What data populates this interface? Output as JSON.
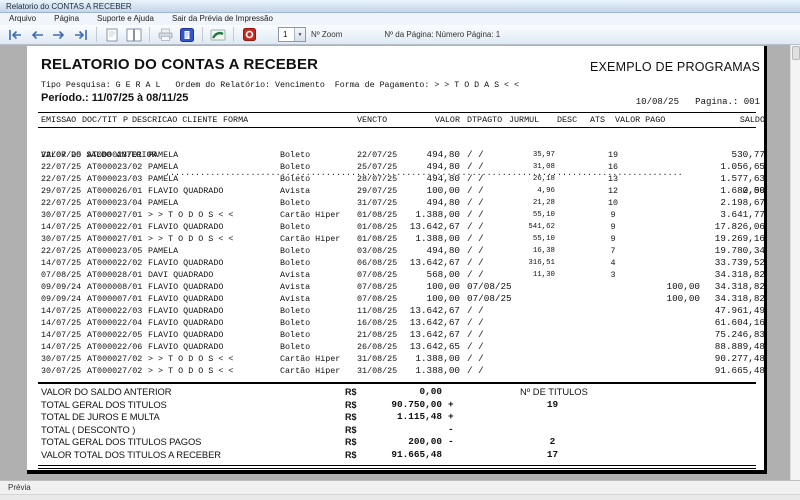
{
  "colors": {
    "titlebar_blue": "#c3d6ea",
    "nav_arrow_blue": "#3f6cb0",
    "dialog_icon_blue": "#3355cc",
    "export_icon_green": "#1f7a46",
    "exit_icon_red": "#c8281e",
    "workspace_gray": "#b0b0b0",
    "page_white": "#ffffff"
  },
  "window": {
    "title": "Relatorio do CONTAS A RECEBER"
  },
  "menu": {
    "items": [
      "Arquivo",
      "Página",
      "Suporte e Ajuda",
      "Sair da Prévia de Impressão"
    ]
  },
  "toolbar": {
    "icons": [
      "first-page",
      "prev-page",
      "next-page",
      "last-page",
      "single-page",
      "two-pages",
      "print",
      "print-dialog",
      "export",
      "exit"
    ],
    "zoom_value": "1",
    "zoom_label": "Nº Zoom",
    "page_info": "Nº da Página: Número Página: 1"
  },
  "report": {
    "title": "RELATORIO DO CONTAS A RECEBER",
    "company": "EXEMPLO DE PROGRAMAS",
    "meta": "Tipo Pesquisa: G E R A L   Ordem do Relatório: Vencimento  Forma de Pagamento: > > T O D A S < <",
    "period": "Período.: 11/07/25 à 08/11/25",
    "date_page": "10/08/25   Pagina.: 001",
    "columns": [
      "EMISSAO",
      "DOC/TIT",
      "P",
      "DESCRICAO CLIENTE",
      "FORMA",
      "VENCTO",
      "VALOR",
      "DTPAGTO",
      "JURMUL",
      "DESC",
      "ATS",
      "VALOR PAGO",
      "SALDO"
    ],
    "saldo_anterior": {
      "label": "VALOR DO SALDO ANTERIOR",
      "dots": "..............................................................................................................",
      "value": "0,00"
    },
    "rows": [
      {
        "emissao": "22/07/25",
        "doc": "AT000023/01",
        "name": "PAMELA",
        "forma": "Boleto",
        "vencto": "22/07/25",
        "valor": "494,80",
        "dtpagto": "/ /",
        "jurmul": "35,97",
        "ats": "19",
        "pago": "",
        "saldo": "530,77"
      },
      {
        "emissao": "22/07/25",
        "doc": "AT000023/02",
        "name": "PAMELA",
        "forma": "Boleto",
        "vencto": "25/07/25",
        "valor": "494,80",
        "dtpagto": "/ /",
        "jurmul": "31,08",
        "ats": "16",
        "pago": "",
        "saldo": "1.056,65"
      },
      {
        "emissao": "22/07/25",
        "doc": "AT000023/03",
        "name": "PAMELA",
        "forma": "Boleto",
        "vencto": "28/07/25",
        "valor": "494,80",
        "dtpagto": "/ /",
        "jurmul": "26,18",
        "ats": "13",
        "pago": "",
        "saldo": "1.577,63"
      },
      {
        "emissao": "29/07/25",
        "doc": "AT000026/01",
        "name": "FLAVIO QUADRADO",
        "forma": "Avista",
        "vencto": "29/07/25",
        "valor": "100,00",
        "dtpagto": "/ /",
        "jurmul": "4,96",
        "ats": "12",
        "pago": "",
        "saldo": "1.682,59"
      },
      {
        "emissao": "22/07/25",
        "doc": "AT000023/04",
        "name": "PAMELA",
        "forma": "Boleto",
        "vencto": "31/07/25",
        "valor": "494,80",
        "dtpagto": "/ /",
        "jurmul": "21,28",
        "ats": "10",
        "pago": "",
        "saldo": "2.198,67"
      },
      {
        "emissao": "30/07/25",
        "doc": "AT000027/01",
        "name": "> > T O D O S < <",
        "forma": "Cartão Hiper",
        "vencto": "01/08/25",
        "valor": "1.388,00",
        "dtpagto": "/ /",
        "jurmul": "55,10",
        "ats": "9",
        "pago": "",
        "saldo": "3.641,77"
      },
      {
        "emissao": "14/07/25",
        "doc": "AT000022/01",
        "name": "FLAVIO QUADRADO",
        "forma": "Boleto",
        "vencto": "01/08/25",
        "valor": "13.642,67",
        "dtpagto": "/ /",
        "jurmul": "541,62",
        "ats": "9",
        "pago": "",
        "saldo": "17.826,06"
      },
      {
        "emissao": "30/07/25",
        "doc": "AT000027/01",
        "name": "> > T O D O S < <",
        "forma": "Cartão Hiper",
        "vencto": "01/08/25",
        "valor": "1.388,00",
        "dtpagto": "/ /",
        "jurmul": "55,10",
        "ats": "9",
        "pago": "",
        "saldo": "19.269,16"
      },
      {
        "emissao": "22/07/25",
        "doc": "AT000023/05",
        "name": "PAMELA",
        "forma": "Boleto",
        "vencto": "03/08/25",
        "valor": "494,80",
        "dtpagto": "/ /",
        "jurmul": "16,38",
        "ats": "7",
        "pago": "",
        "saldo": "19.780,34"
      },
      {
        "emissao": "14/07/25",
        "doc": "AT000022/02",
        "name": "FLAVIO QUADRADO",
        "forma": "Boleto",
        "vencto": "06/08/25",
        "valor": "13.642,67",
        "dtpagto": "/ /",
        "jurmul": "316,51",
        "ats": "4",
        "pago": "",
        "saldo": "33.739,52"
      },
      {
        "emissao": "07/08/25",
        "doc": "AT000028/01",
        "name": "DAVI QUADRADO",
        "forma": "Avista",
        "vencto": "07/08/25",
        "valor": "568,00",
        "dtpagto": "/ /",
        "jurmul": "11,30",
        "ats": "3",
        "pago": "",
        "saldo": "34.318,82"
      },
      {
        "emissao": "09/09/24",
        "doc": "AT000008/01",
        "name": "FLAVIO QUADRADO",
        "forma": "Avista",
        "vencto": "07/08/25",
        "valor": "100,00",
        "dtpagto": "07/08/25",
        "jurmul": "",
        "ats": "",
        "pago": "100,00",
        "saldo": "34.318,82"
      },
      {
        "emissao": "09/09/24",
        "doc": "AT000007/01",
        "name": "FLAVIO QUADRADO",
        "forma": "Avista",
        "vencto": "07/08/25",
        "valor": "100,00",
        "dtpagto": "07/08/25",
        "jurmul": "",
        "ats": "",
        "pago": "100,00",
        "saldo": "34.318,82"
      },
      {
        "emissao": "14/07/25",
        "doc": "AT000022/03",
        "name": "FLAVIO QUADRADO",
        "forma": "Boleto",
        "vencto": "11/08/25",
        "valor": "13.642,67",
        "dtpagto": "/ /",
        "jurmul": "",
        "ats": "",
        "pago": "",
        "saldo": "47.961,49"
      },
      {
        "emissao": "14/07/25",
        "doc": "AT000022/04",
        "name": "FLAVIO QUADRADO",
        "forma": "Boleto",
        "vencto": "16/08/25",
        "valor": "13.642,67",
        "dtpagto": "/ /",
        "jurmul": "",
        "ats": "",
        "pago": "",
        "saldo": "61.604,16"
      },
      {
        "emissao": "14/07/25",
        "doc": "AT000022/05",
        "name": "FLAVIO QUADRADO",
        "forma": "Boleto",
        "vencto": "21/08/25",
        "valor": "13.642,67",
        "dtpagto": "/ /",
        "jurmul": "",
        "ats": "",
        "pago": "",
        "saldo": "75.246,83"
      },
      {
        "emissao": "14/07/25",
        "doc": "AT000022/06",
        "name": "FLAVIO QUADRADO",
        "forma": "Boleto",
        "vencto": "26/08/25",
        "valor": "13.642,65",
        "dtpagto": "/ /",
        "jurmul": "",
        "ats": "",
        "pago": "",
        "saldo": "88.889,48"
      },
      {
        "emissao": "30/07/25",
        "doc": "AT000027/02",
        "name": "> > T O D O S < <",
        "forma": "Cartão Hiper",
        "vencto": "31/08/25",
        "valor": "1.388,00",
        "dtpagto": "/ /",
        "jurmul": "",
        "ats": "",
        "pago": "",
        "saldo": "90.277,48"
      },
      {
        "emissao": "30/07/25",
        "doc": "AT000027/02",
        "name": "> > T O D O S < <",
        "forma": "Cartão Hiper",
        "vencto": "31/08/25",
        "valor": "1.388,00",
        "dtpagto": "/ /",
        "jurmul": "",
        "ats": "",
        "pago": "",
        "saldo": "91.665,48"
      }
    ],
    "summary": {
      "titles_header": "Nº DE TITULOS",
      "currency": "R$",
      "rows": [
        {
          "label": "VALOR DO SALDO ANTERIOR",
          "value": "0,00",
          "sign": "",
          "count": ""
        },
        {
          "label": "TOTAL GERAL DOS TITULOS",
          "value": "90.750,00",
          "sign": "+",
          "count": "19"
        },
        {
          "label": "TOTAL DE JUROS E MULTA",
          "value": "1.115,48",
          "sign": "+",
          "count": ""
        },
        {
          "label": "TOTAL ( DESCONTO )",
          "value": "",
          "sign": "-",
          "count": ""
        },
        {
          "label": "TOTAL GERAL DOS TITULOS PAGOS",
          "value": "200,00",
          "sign": "-",
          "count": "2"
        },
        {
          "label": "VALOR TOTAL DOS TITULOS A RECEBER",
          "value": "91.665,48",
          "sign": "",
          "count": "17"
        }
      ]
    }
  },
  "statusbar": {
    "label": "Prévia"
  }
}
